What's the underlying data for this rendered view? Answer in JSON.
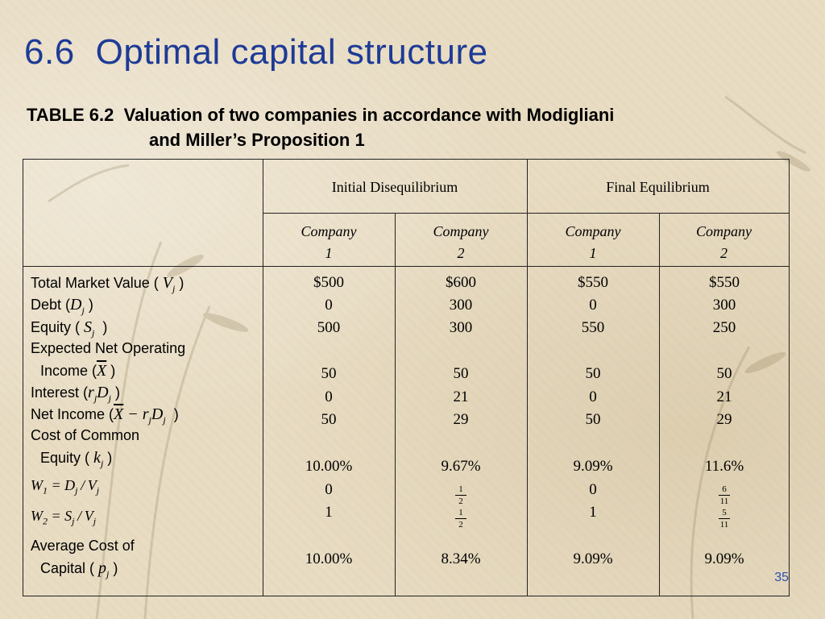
{
  "slide": {
    "section_number": "6.6",
    "title": "Optimal capital structure",
    "page_number": "35"
  },
  "table": {
    "caption_prefix": "TABLE 6.2",
    "caption_line1": "Valuation of two companies in accordance with Modigliani",
    "caption_line2": "and Miller’s Proposition 1",
    "groups": [
      "Initial Disequilibrium",
      "Final Equilibrium"
    ],
    "companies": [
      {
        "name": "Company",
        "num": "1"
      },
      {
        "name": "Company",
        "num": "2"
      },
      {
        "name": "Company",
        "num": "1"
      },
      {
        "name": "Company",
        "num": "2"
      }
    ],
    "row_labels": {
      "total_market_value": "Total Market Value (",
      "debt": "Debt (",
      "equity": "Equity (",
      "expected_noi_1": "Expected Net Operating",
      "expected_noi_2": "Income (",
      "interest": "Interest (",
      "net_income": "Net Income (",
      "cost_common_1": "Cost of Common",
      "cost_common_2": "Equity (",
      "avg_cost_1": "Average Cost of",
      "avg_cost_2": "Capital (",
      "close_paren": ")"
    },
    "columns": [
      {
        "tmv": "$500",
        "debt": "0",
        "equity": "500",
        "noi": "50",
        "interest": "0",
        "net_income": "50",
        "cost_equity": "10.00%",
        "w1": "0",
        "w2": "1",
        "avg_cost": "10.00%"
      },
      {
        "tmv": "$600",
        "debt": "300",
        "equity": "300",
        "noi": "50",
        "interest": "21",
        "net_income": "29",
        "cost_equity": "9.67%",
        "w1_num": "1",
        "w1_den": "2",
        "w2_num": "1",
        "w2_den": "2",
        "avg_cost": "8.34%"
      },
      {
        "tmv": "$550",
        "debt": "0",
        "equity": "550",
        "noi": "50",
        "interest": "0",
        "net_income": "50",
        "cost_equity": "9.09%",
        "w1": "0",
        "w2": "1",
        "avg_cost": "9.09%"
      },
      {
        "tmv": "$550",
        "debt": "300",
        "equity": "250",
        "noi": "50",
        "interest": "21",
        "net_income": "29",
        "cost_equity": "11.6%",
        "w1_num": "6",
        "w1_den": "11",
        "w2_num": "5",
        "w2_den": "11",
        "avg_cost": "9.09%"
      }
    ]
  }
}
